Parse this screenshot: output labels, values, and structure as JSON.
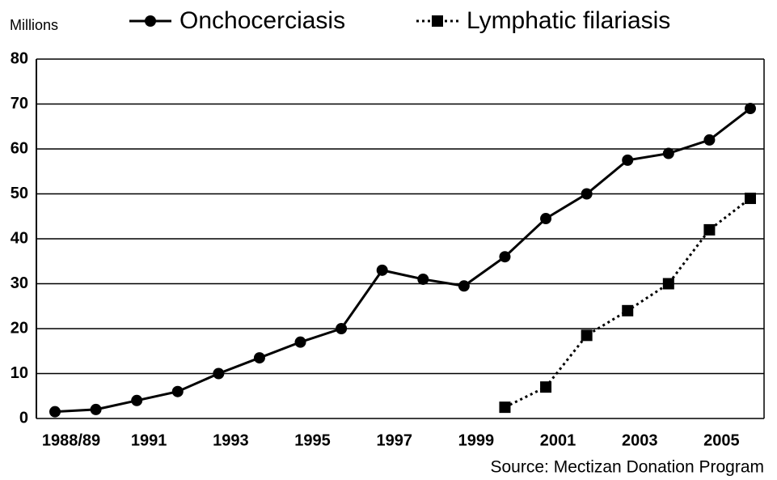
{
  "chart_data": {
    "type": "line",
    "y_axis_label": "Millions",
    "source": "Source: Mectizan Donation Program",
    "categories": [
      "1988/89",
      null,
      "1991",
      null,
      "1993",
      null,
      "1995",
      null,
      "1997",
      null,
      "1999",
      null,
      "2001",
      null,
      "2003",
      null,
      "2005",
      null
    ],
    "series": [
      {
        "name": "Onchocerciasis",
        "color": "#000000",
        "marker": "circle",
        "line_style": "solid",
        "values": [
          1.5,
          2,
          4,
          6,
          10,
          13.5,
          17,
          20,
          33,
          31,
          29.5,
          36,
          44.5,
          50,
          57.5,
          59,
          62,
          69
        ]
      },
      {
        "name": "Lymphatic filariasis",
        "color": "#000000",
        "marker": "square",
        "line_style": "dotted",
        "values": [
          null,
          null,
          null,
          null,
          null,
          null,
          null,
          null,
          null,
          null,
          null,
          2.5,
          7,
          18.5,
          24,
          30,
          42,
          49
        ]
      }
    ],
    "ylim": [
      0,
      80
    ],
    "yticks": [
      0,
      10,
      20,
      30,
      40,
      50,
      60,
      70,
      80
    ],
    "grid": true
  }
}
